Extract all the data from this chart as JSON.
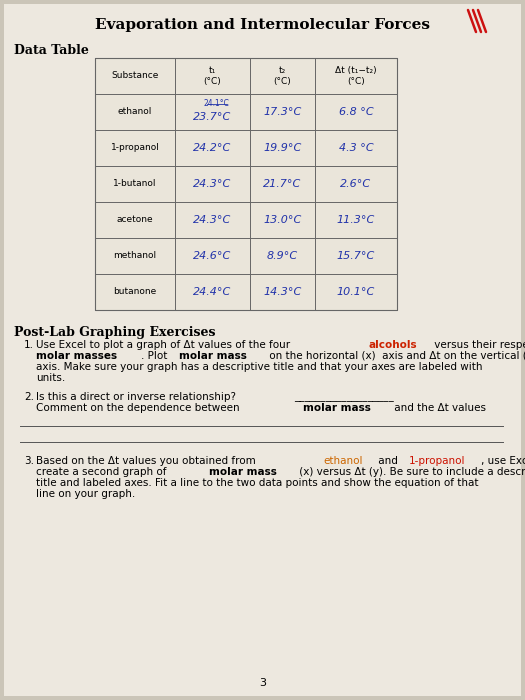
{
  "title": "Evaporation and Intermolecular Forces",
  "section1": "Data Table",
  "section2": "Post-Lab Graphing Exercises",
  "bg_color": "#cbc5b8",
  "paper_color": "#ede8df",
  "substances": [
    "ethanol",
    "1-propanol",
    "1-butanol",
    "acetone",
    "methanol",
    "butanone"
  ],
  "t1_vals": [
    "23.7°C",
    "24.2°C",
    "24.3°C",
    "24.3°C",
    "24.6°C",
    "24.4°C"
  ],
  "t1_above": [
    "24.1°C",
    "",
    "",
    "",
    "",
    ""
  ],
  "t2_vals": [
    "17.3°C",
    "19.9°C",
    "21.7°C",
    "13.0°C",
    "8.9°C",
    "14.3°C"
  ],
  "dt_vals": [
    "6.8 °C",
    "4.3 °C",
    "2.6°C",
    "11.3°C",
    "15.7°C",
    "10.1°C"
  ],
  "handwrite_color": "#2233aa",
  "page_number": "3"
}
